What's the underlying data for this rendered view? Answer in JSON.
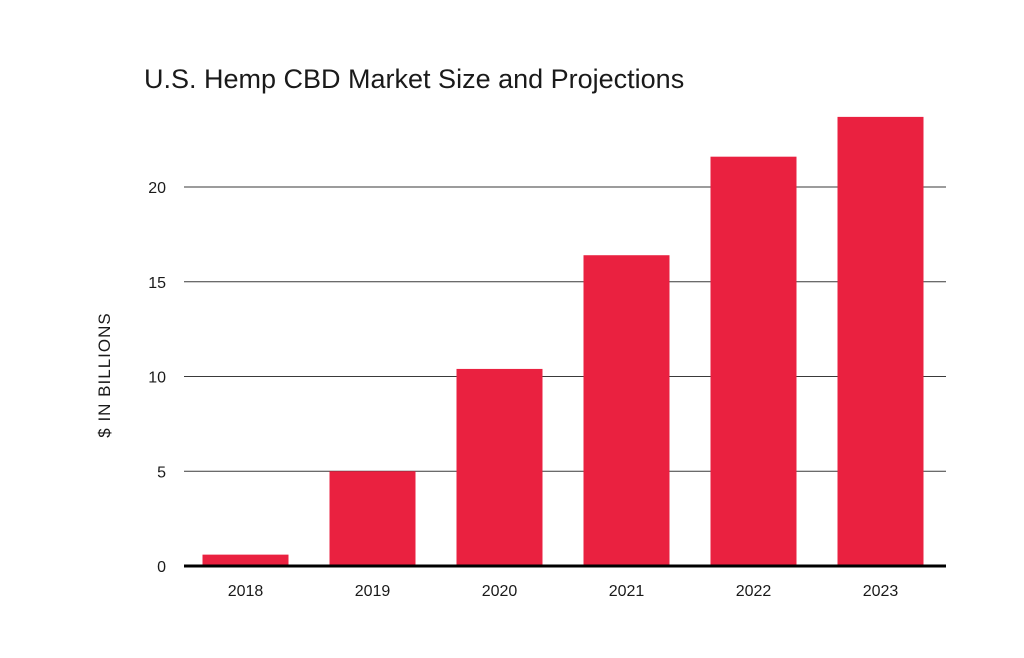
{
  "chart_data": {
    "type": "bar",
    "title": "U.S. Hemp CBD Market Size and Projections",
    "xlabel": "",
    "ylabel": "$ IN BILLIONS",
    "categories": [
      "2018",
      "2019",
      "2020",
      "2021",
      "2022",
      "2023"
    ],
    "values": [
      0.6,
      5.0,
      10.4,
      16.4,
      21.6,
      23.7
    ],
    "ylim": [
      0,
      25
    ],
    "yticks": [
      "0",
      "5",
      "10",
      "15",
      "20"
    ],
    "grid": true,
    "bar_color": "#ea2140"
  }
}
